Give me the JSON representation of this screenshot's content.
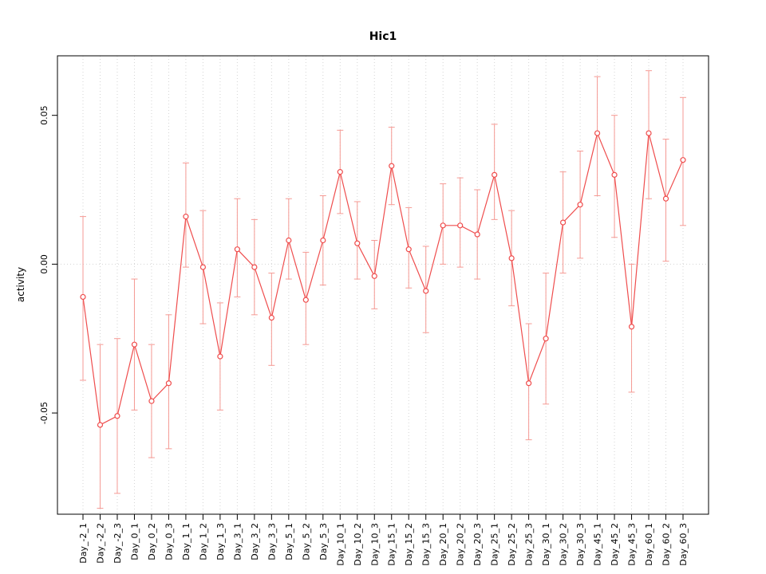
{
  "chart_data": {
    "type": "line",
    "title": "Hic1",
    "ylabel": "activity",
    "xlabel": "",
    "legend": "none",
    "grid": "vertical dotted gridlines at each category plus dotted horizontal line at y=0",
    "point_style": "open-circle",
    "error_bars": true,
    "categories": [
      "Day_-2_1",
      "Day_-2_2",
      "Day_-2_3",
      "Day_0_1",
      "Day_0_2",
      "Day_0_3",
      "Day_1_1",
      "Day_1_2",
      "Day_1_3",
      "Day_3_1",
      "Day_3_2",
      "Day_3_3",
      "Day_5_1",
      "Day_5_2",
      "Day_5_3",
      "Day_10_1",
      "Day_10_2",
      "Day_10_3",
      "Day_15_1",
      "Day_15_2",
      "Day_15_3",
      "Day_20_1",
      "Day_20_2",
      "Day_20_3",
      "Day_25_1",
      "Day_25_2",
      "Day_25_3",
      "Day_30_1",
      "Day_30_2",
      "Day_30_3",
      "Day_45_1",
      "Day_45_2",
      "Day_45_3",
      "Day_60_1",
      "Day_60_2",
      "Day_60_3"
    ],
    "series": [
      {
        "name": "activity",
        "values": [
          -0.011,
          -0.054,
          -0.051,
          -0.027,
          -0.046,
          -0.04,
          0.016,
          -0.001,
          -0.031,
          0.005,
          -0.001,
          -0.018,
          0.008,
          -0.012,
          0.008,
          0.031,
          0.007,
          -0.004,
          0.033,
          0.005,
          -0.009,
          0.013,
          0.013,
          0.01,
          0.03,
          0.002,
          -0.04,
          -0.025,
          0.014,
          0.02,
          0.044,
          0.03,
          -0.021,
          0.044,
          0.022,
          0.035
        ],
        "error_low": [
          -0.039,
          -0.082,
          -0.077,
          -0.049,
          -0.065,
          -0.062,
          -0.001,
          -0.02,
          -0.049,
          -0.011,
          -0.017,
          -0.034,
          -0.005,
          -0.027,
          -0.007,
          0.017,
          -0.005,
          -0.015,
          0.02,
          -0.008,
          -0.023,
          0.0,
          -0.001,
          -0.005,
          0.015,
          -0.014,
          -0.059,
          -0.047,
          -0.003,
          0.002,
          0.023,
          0.009,
          -0.043,
          0.022,
          0.001,
          0.013
        ],
        "error_high": [
          0.016,
          -0.027,
          -0.025,
          -0.005,
          -0.027,
          -0.017,
          0.034,
          0.018,
          -0.013,
          0.022,
          0.015,
          -0.003,
          0.022,
          0.004,
          0.023,
          0.045,
          0.021,
          0.008,
          0.046,
          0.019,
          0.006,
          0.027,
          0.029,
          0.025,
          0.047,
          0.018,
          -0.02,
          -0.003,
          0.031,
          0.038,
          0.063,
          0.05,
          0.0,
          0.065,
          0.042,
          0.056
        ]
      }
    ],
    "yticks": [
      -0.05,
      0.0,
      0.05
    ],
    "ytick_labels": [
      "-0.05",
      "0.00",
      "0.05"
    ],
    "ylim": [
      -0.084,
      0.07
    ],
    "colors": {
      "series": "#ef4d4d",
      "error_bars": "#f59a94",
      "grid": "#d4d4d4",
      "axis": "#000000",
      "background": "#ffffff"
    }
  }
}
